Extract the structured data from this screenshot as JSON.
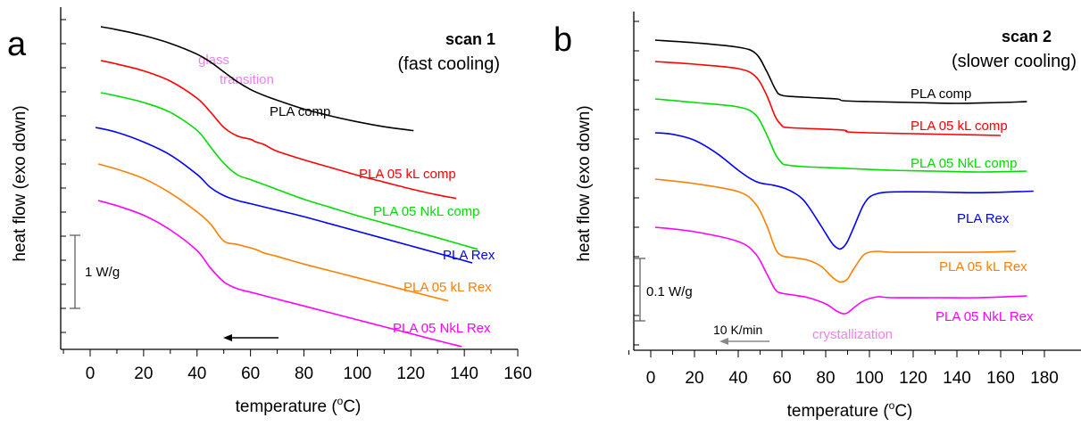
{
  "chart_data": [
    {
      "type": "line",
      "panel_letter": "a",
      "title": "scan 1",
      "subtitle": "(fast cooling)",
      "xlabel_main": "temperature (",
      "xlabel_sup": "o",
      "xlabel_end": "C)",
      "ylabel": "heat flow (exo down)",
      "xlim": [
        -10,
        160
      ],
      "xticks": [
        0,
        20,
        40,
        60,
        80,
        100,
        120,
        140,
        160
      ],
      "yticks_count": 14,
      "scale_bar_label": "1 W/g",
      "arrow_direction": "left",
      "annotations": [
        {
          "text": "glass",
          "color": "#ee82ee"
        },
        {
          "text": "transition",
          "color": "#ee82ee"
        }
      ],
      "series": [
        {
          "name": "PLA comp",
          "color": "#000000",
          "x": [
            4,
            10,
            20,
            30,
            40,
            45,
            50,
            55,
            60,
            65,
            70,
            80,
            90,
            100,
            110,
            121
          ],
          "y": [
            0.0,
            0.03,
            0.09,
            0.17,
            0.28,
            0.36,
            0.46,
            0.56,
            0.64,
            0.7,
            0.75,
            0.84,
            0.91,
            0.97,
            1.02,
            1.06
          ]
        },
        {
          "name": "PLA 05 kL comp",
          "color": "#ff0000",
          "x": [
            4,
            10,
            20,
            30,
            40,
            45,
            50,
            55,
            60,
            62,
            65,
            70,
            80,
            90,
            100,
            110,
            120,
            130,
            137
          ],
          "y": [
            0.0,
            0.04,
            0.12,
            0.24,
            0.44,
            0.6,
            0.78,
            0.88,
            0.92,
            0.95,
            0.98,
            1.06,
            1.16,
            1.25,
            1.34,
            1.42,
            1.5,
            1.57,
            1.61
          ]
        },
        {
          "name": "PLA 05 NkL comp",
          "color": "#00dd00",
          "x": [
            4,
            10,
            20,
            30,
            40,
            45,
            50,
            55,
            60,
            65,
            70,
            80,
            90,
            100,
            110,
            120,
            130,
            145
          ],
          "y": [
            0.0,
            0.04,
            0.12,
            0.24,
            0.46,
            0.66,
            0.86,
            1.0,
            1.06,
            1.12,
            1.18,
            1.3,
            1.4,
            1.5,
            1.59,
            1.68,
            1.77,
            1.91
          ]
        },
        {
          "name": "PLA Rex",
          "color": "#0000ff",
          "x": [
            2,
            10,
            20,
            30,
            40,
            45,
            50,
            55,
            60,
            70,
            80,
            90,
            100,
            110,
            120,
            130,
            143
          ],
          "y": [
            0.0,
            0.06,
            0.18,
            0.34,
            0.58,
            0.74,
            0.84,
            0.9,
            0.94,
            1.02,
            1.1,
            1.19,
            1.28,
            1.37,
            1.46,
            1.55,
            1.67
          ]
        },
        {
          "name": "PLA 05 kL Rex",
          "color": "#ff7f00",
          "x": [
            3,
            10,
            20,
            30,
            40,
            45,
            50,
            55,
            60,
            63,
            65,
            70,
            80,
            90,
            100,
            110,
            120,
            134
          ],
          "y": [
            0.0,
            0.06,
            0.17,
            0.34,
            0.56,
            0.7,
            0.9,
            0.94,
            0.98,
            1.01,
            1.04,
            1.08,
            1.17,
            1.25,
            1.33,
            1.41,
            1.49,
            1.6
          ]
        },
        {
          "name": "PLA 05 NkL Rex",
          "color": "#ff00ff",
          "x": [
            3,
            10,
            20,
            30,
            40,
            45,
            50,
            55,
            60,
            70,
            80,
            90,
            100,
            110,
            120,
            130,
            139
          ],
          "y": [
            0.0,
            0.06,
            0.17,
            0.34,
            0.58,
            0.78,
            0.94,
            1.02,
            1.06,
            1.14,
            1.22,
            1.3,
            1.38,
            1.46,
            1.54,
            1.62,
            1.69
          ]
        }
      ]
    },
    {
      "type": "line",
      "panel_letter": "b",
      "title": "scan 2",
      "subtitle": "(slower cooling)",
      "xlabel_main": "temperature (",
      "xlabel_sup": "o",
      "xlabel_end": "C)",
      "ylabel": "heat flow (exo down)",
      "xlim": [
        -10,
        180
      ],
      "xticks": [
        0,
        20,
        40,
        60,
        80,
        100,
        120,
        140,
        160,
        180
      ],
      "yticks_count": 14,
      "scale_bar_label": "0.1 W/g",
      "rate_label": "10 K/min",
      "arrow_direction": "left",
      "annotations": [
        {
          "text": "crystallization",
          "color": "#ee82ee"
        }
      ],
      "series": [
        {
          "name": "PLA comp",
          "color": "#000000",
          "x": [
            2,
            20,
            40,
            48,
            53,
            57,
            60,
            70,
            85,
            88,
            100,
            120,
            140,
            160,
            172
          ],
          "y": [
            0.0,
            0.03,
            0.08,
            0.15,
            0.35,
            0.55,
            0.62,
            0.64,
            0.66,
            0.68,
            0.69,
            0.7,
            0.71,
            0.7,
            0.69
          ]
        },
        {
          "name": "PLA 05 kL comp",
          "color": "#ff0000",
          "x": [
            2,
            20,
            40,
            48,
            53,
            57,
            60,
            62,
            70,
            88,
            90,
            100,
            120,
            140,
            160
          ],
          "y": [
            0.0,
            0.03,
            0.08,
            0.17,
            0.38,
            0.62,
            0.72,
            0.74,
            0.75,
            0.77,
            0.79,
            0.8,
            0.81,
            0.82,
            0.83
          ]
        },
        {
          "name": "PLA 05 NkL comp",
          "color": "#00dd00",
          "x": [
            2,
            20,
            40,
            48,
            53,
            57,
            60,
            62,
            70,
            90,
            110,
            130,
            150,
            172
          ],
          "y": [
            0.0,
            0.04,
            0.09,
            0.18,
            0.4,
            0.62,
            0.72,
            0.74,
            0.76,
            0.78,
            0.8,
            0.81,
            0.82,
            0.81
          ]
        },
        {
          "name": "PLA Rex",
          "color": "#0000ff",
          "x": [
            2,
            10,
            20,
            30,
            40,
            46,
            50,
            56,
            62,
            68,
            72,
            78,
            83,
            86,
            88,
            90,
            93,
            97,
            100,
            104,
            110,
            130,
            150,
            175
          ],
          "y": [
            0.0,
            0.02,
            0.1,
            0.27,
            0.5,
            0.62,
            0.67,
            0.7,
            0.75,
            0.85,
            0.98,
            1.25,
            1.48,
            1.55,
            1.53,
            1.45,
            1.25,
            0.98,
            0.86,
            0.81,
            0.79,
            0.79,
            0.8,
            0.78
          ]
        },
        {
          "name": "PLA 05 kL Rex",
          "color": "#ff7f00",
          "x": [
            2,
            20,
            40,
            48,
            53,
            57,
            60,
            65,
            72,
            78,
            83,
            86,
            88,
            90,
            93,
            97,
            100,
            104,
            110,
            130,
            150,
            167
          ],
          "y": [
            0.0,
            0.05,
            0.14,
            0.28,
            0.52,
            0.78,
            0.86,
            0.88,
            0.91,
            0.98,
            1.1,
            1.15,
            1.15,
            1.12,
            1.0,
            0.86,
            0.82,
            0.81,
            0.82,
            0.82,
            0.82,
            0.81
          ]
        },
        {
          "name": "PLA 05 NkL Rex",
          "color": "#ff00ff",
          "x": [
            2,
            20,
            40,
            48,
            53,
            57,
            60,
            65,
            72,
            80,
            85,
            88,
            90,
            93,
            97,
            100,
            104,
            110,
            130,
            150,
            172
          ],
          "y": [
            0.0,
            0.05,
            0.16,
            0.3,
            0.52,
            0.7,
            0.74,
            0.76,
            0.79,
            0.86,
            0.94,
            0.97,
            0.96,
            0.9,
            0.83,
            0.8,
            0.78,
            0.79,
            0.79,
            0.79,
            0.77
          ]
        }
      ]
    }
  ]
}
